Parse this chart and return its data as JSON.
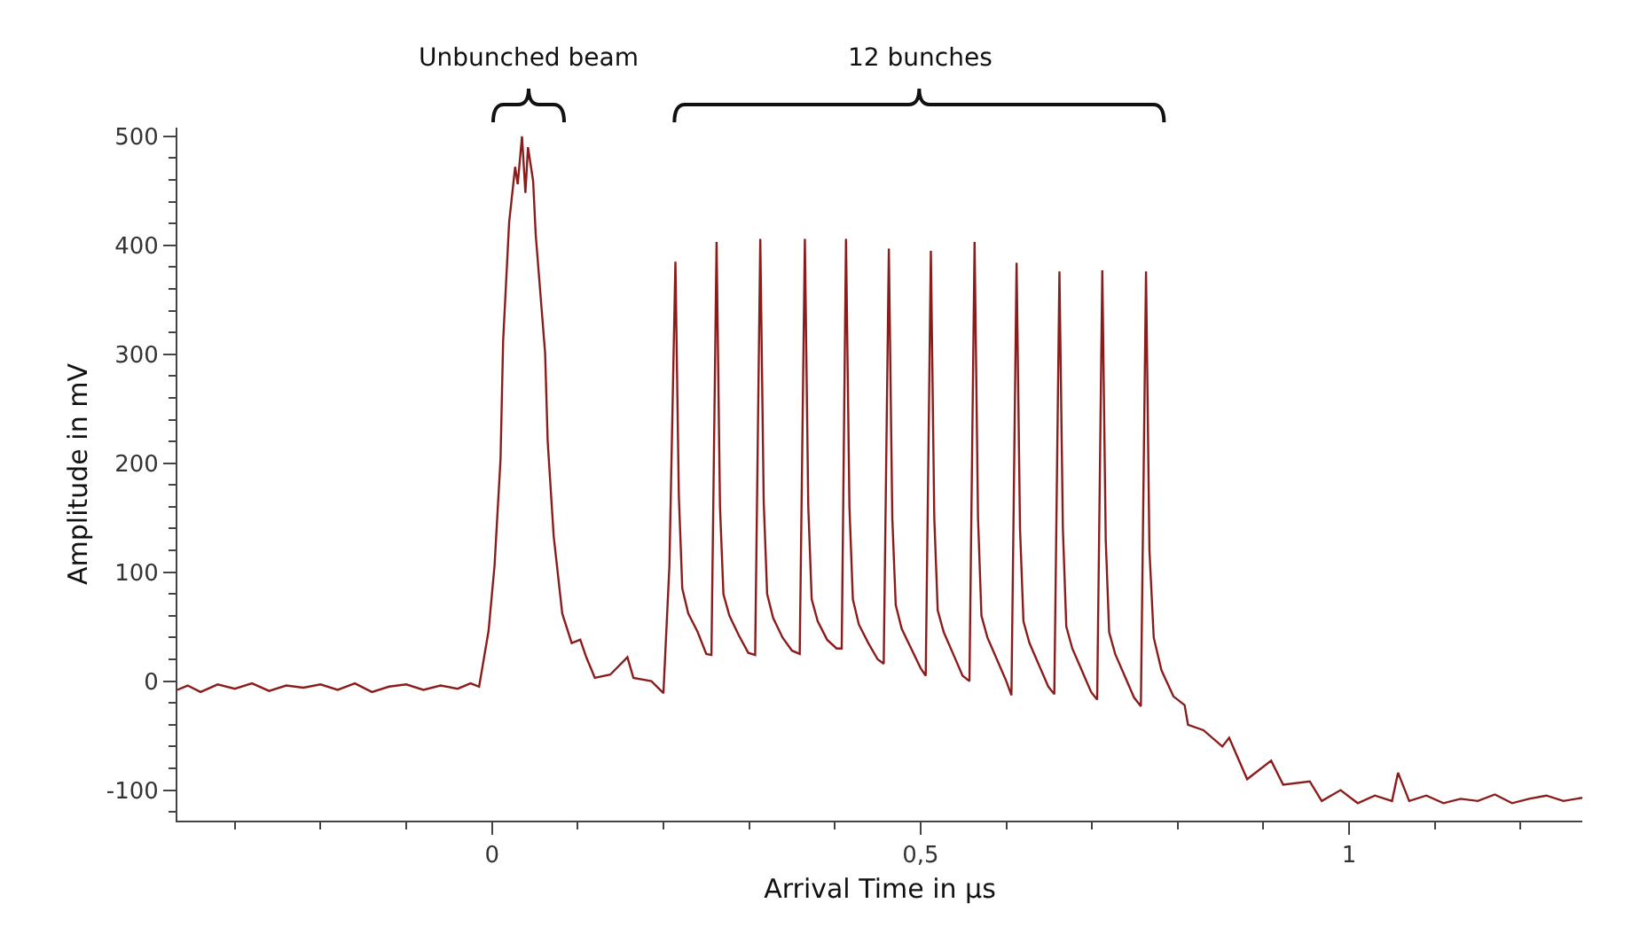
{
  "chart_data": {
    "type": "line",
    "xlabel": "Arrival Time in µs",
    "ylabel": "Amplitude in mV",
    "annotations": [
      "Unbunched beam",
      "12 bunches"
    ],
    "xlim": [
      -0.367,
      1.272
    ],
    "ylim": [
      -128,
      508
    ],
    "xticks": [
      {
        "value": -0.3,
        "label": null
      },
      {
        "value": -0.2,
        "label": null
      },
      {
        "value": -0.1,
        "label": null
      },
      0,
      {
        "value": 0.1,
        "label": null
      },
      {
        "value": 0.2,
        "label": null
      },
      {
        "value": 0.3,
        "label": null
      },
      {
        "value": 0.4,
        "label": null
      },
      {
        "value": 0.5,
        "label": "0,5"
      },
      {
        "value": 0.6,
        "label": null
      },
      {
        "value": 0.7,
        "label": null
      },
      {
        "value": 0.8,
        "label": null
      },
      {
        "value": 0.9,
        "label": null
      },
      1,
      {
        "value": 1.1,
        "label": null
      },
      {
        "value": 1.2,
        "label": null
      }
    ],
    "yticks": [
      {
        "value": -120,
        "label": null
      },
      -100,
      {
        "value": -80,
        "label": null
      },
      {
        "value": -60,
        "label": null
      },
      {
        "value": -40,
        "label": null
      },
      {
        "value": -20,
        "label": null
      },
      0,
      {
        "value": 20,
        "label": null
      },
      {
        "value": 40,
        "label": null
      },
      {
        "value": 60,
        "label": null
      },
      {
        "value": 80,
        "label": null
      },
      100,
      {
        "value": 120,
        "label": null
      },
      {
        "value": 140,
        "label": null
      },
      {
        "value": 160,
        "label": null
      },
      {
        "value": 180,
        "label": null
      },
      200,
      {
        "value": 220,
        "label": null
      },
      {
        "value": 240,
        "label": null
      },
      {
        "value": 260,
        "label": null
      },
      {
        "value": 280,
        "label": null
      },
      300,
      {
        "value": 320,
        "label": null
      },
      {
        "value": 340,
        "label": null
      },
      {
        "value": 360,
        "label": null
      },
      {
        "value": 380,
        "label": null
      },
      400,
      {
        "value": 420,
        "label": null
      },
      {
        "value": 440,
        "label": null
      },
      {
        "value": 460,
        "label": null
      },
      {
        "value": 480,
        "label": null
      },
      500
    ],
    "grid": false,
    "marker": "none",
    "line_style": "solid",
    "series": [
      {
        "color": "#8b1c1c",
        "x": [
          -0.367,
          -0.355,
          -0.34,
          -0.32,
          -0.3,
          -0.28,
          -0.26,
          -0.24,
          -0.22,
          -0.2,
          -0.18,
          -0.16,
          -0.14,
          -0.12,
          -0.1,
          -0.08,
          -0.06,
          -0.04,
          -0.025,
          -0.015,
          -0.004,
          0.003,
          0.01,
          0.013,
          0.02,
          0.027,
          0.03,
          0.035,
          0.039,
          0.042,
          0.048,
          0.051,
          0.062,
          0.065,
          0.072,
          0.082,
          0.093,
          0.103,
          0.11,
          0.12,
          0.138,
          0.158,
          0.165,
          0.186,
          0.2,
          0.207,
          0.214,
          0.218,
          0.222,
          0.229,
          0.24,
          0.25,
          0.256,
          0.262,
          0.266,
          0.27,
          0.277,
          0.288,
          0.299,
          0.307,
          0.313,
          0.317,
          0.321,
          0.328,
          0.339,
          0.35,
          0.359,
          0.365,
          0.369,
          0.373,
          0.38,
          0.391,
          0.402,
          0.408,
          0.413,
          0.417,
          0.421,
          0.428,
          0.439,
          0.45,
          0.457,
          0.463,
          0.467,
          0.471,
          0.478,
          0.489,
          0.5,
          0.506,
          0.512,
          0.516,
          0.52,
          0.527,
          0.538,
          0.549,
          0.557,
          0.563,
          0.567,
          0.571,
          0.578,
          0.589,
          0.6,
          0.606,
          0.612,
          0.616,
          0.62,
          0.627,
          0.638,
          0.649,
          0.656,
          0.662,
          0.666,
          0.67,
          0.677,
          0.688,
          0.699,
          0.706,
          0.712,
          0.716,
          0.72,
          0.727,
          0.738,
          0.749,
          0.757,
          0.763,
          0.767,
          0.772,
          0.781,
          0.795,
          0.808,
          0.812,
          0.83,
          0.852,
          0.86,
          0.881,
          0.909,
          0.923,
          0.954,
          0.968,
          0.99,
          1.01,
          1.03,
          1.05,
          1.057,
          1.07,
          1.09,
          1.11,
          1.13,
          1.15,
          1.17,
          1.19,
          1.21,
          1.23,
          1.25,
          1.272
        ],
        "values": [
          -8,
          -4,
          -10,
          -3,
          -7,
          -2,
          -9,
          -4,
          -6,
          -3,
          -8,
          -2,
          -10,
          -5,
          -3,
          -8,
          -4,
          -7,
          -2,
          -5,
          46,
          106,
          204,
          312,
          421,
          472,
          456,
          500,
          448,
          490,
          459,
          410,
          301,
          220,
          133,
          62,
          35,
          38,
          22,
          3,
          6,
          22,
          3,
          0,
          -11,
          106,
          385,
          170,
          85,
          62,
          45,
          25,
          24,
          403,
          160,
          80,
          60,
          42,
          26,
          24,
          406,
          165,
          80,
          58,
          40,
          28,
          25,
          406,
          160,
          75,
          55,
          38,
          30,
          30,
          406,
          160,
          75,
          52,
          35,
          20,
          16,
          397,
          150,
          70,
          48,
          30,
          12,
          5,
          395,
          150,
          65,
          45,
          25,
          5,
          0,
          403,
          150,
          60,
          40,
          20,
          0,
          -13,
          384,
          140,
          55,
          35,
          15,
          -5,
          -12,
          376,
          140,
          50,
          30,
          10,
          -10,
          -17,
          377,
          130,
          45,
          25,
          5,
          -15,
          -23,
          376,
          120,
          40,
          10,
          -14,
          -22,
          -40,
          -45,
          -60,
          -52,
          -90,
          -73,
          -95,
          -92,
          -110,
          -100,
          -112,
          -105,
          -110,
          -84,
          -110,
          -105,
          -112,
          -108,
          -110,
          -104,
          -112,
          -108,
          -105,
          -110,
          -107
        ]
      }
    ]
  }
}
